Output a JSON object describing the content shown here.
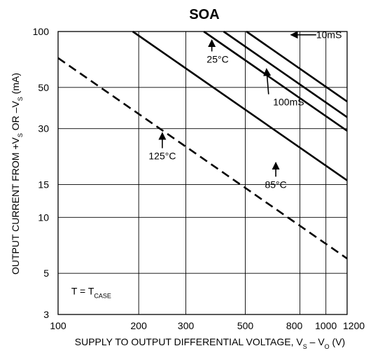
{
  "chart_data": {
    "type": "line",
    "title": "SOA",
    "xlabel": {
      "text": "SUPPLY TO OUTPUT DIFFERENTIAL VOLTAGE, V",
      "sub1": "S",
      "mid": " – V",
      "sub2": "O",
      "tail": " (V)"
    },
    "ylabel": {
      "text": "OUTPUT CURRENT FROM +V",
      "sub1": "S",
      "mid": " OR –V",
      "sub2": "S",
      "tail": " (mA)"
    },
    "x_scale": "log",
    "y_scale": "log",
    "xlim": [
      100,
      1200
    ],
    "ylim": [
      3,
      100
    ],
    "x_ticks": [
      100,
      200,
      300,
      500,
      800,
      1000,
      1200
    ],
    "x_tick_labels": [
      "100",
      "200",
      "300",
      "500",
      "800",
      "1000",
      "1200"
    ],
    "y_ticks": [
      3,
      5,
      10,
      15,
      30,
      50,
      100
    ],
    "y_tick_labels": [
      "3",
      "5",
      "10",
      "15",
      "30",
      "50",
      "100"
    ],
    "grid": true,
    "series": [
      {
        "name": "125°C",
        "style": "dashed",
        "x": [
          100,
          1200
        ],
        "y": [
          72,
          6.0
        ]
      },
      {
        "name": "85°C",
        "style": "solid",
        "x": [
          190,
          1200
        ],
        "y": [
          100,
          15.8
        ]
      },
      {
        "name": "25°C",
        "style": "solid",
        "x": [
          350,
          1200
        ],
        "y": [
          100,
          29.2
        ]
      },
      {
        "name": "100mS",
        "style": "solid",
        "x": [
          415,
          1200
        ],
        "y": [
          100,
          34.6
        ]
      },
      {
        "name": "10mS",
        "style": "solid",
        "x": [
          505,
          1200
        ],
        "y": [
          100,
          42.0
        ]
      }
    ],
    "annotations": [
      {
        "text": "125°C",
        "x": 245,
        "y": 20.5,
        "arrow_from": [
          245,
          28.5
        ]
      },
      {
        "text": "85°C",
        "x": 650,
        "y": 14.4,
        "arrow_from": [
          650,
          19.7
        ]
      },
      {
        "text": "25°C",
        "x": 385,
        "y": 68,
        "arrow_from": [
          375,
          90
        ]
      },
      {
        "text": "100mS",
        "x": 700,
        "y": 40,
        "arrow_from": [
          600,
          63
        ]
      },
      {
        "text": "10mS",
        "x": 920,
        "y": 96,
        "arrow_from": [
          920,
          96
        ]
      },
      {
        "text": "T = T",
        "sub": "CASE",
        "x": 112,
        "y": 3.85
      }
    ]
  }
}
